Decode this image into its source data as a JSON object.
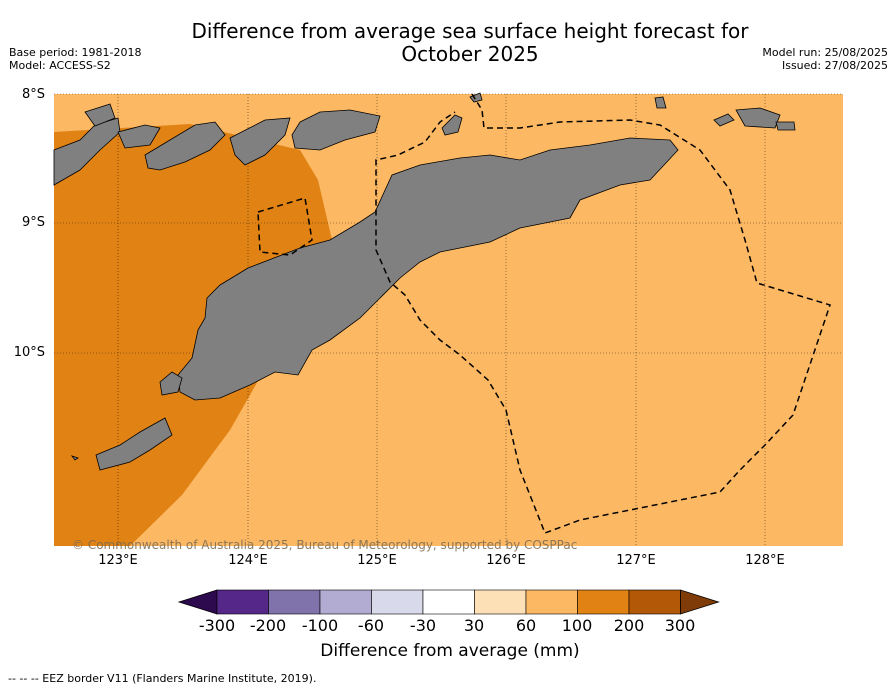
{
  "title_line1": "Difference from average sea surface height forecast for",
  "title_line2": "October 2025",
  "base_period": "Base period: 1981-2018",
  "model": "Model: ACCESS-S2",
  "model_run": "Model run: 25/08/2025",
  "issued": "Issued: 27/08/2025",
  "lat_labels": [
    "8°S",
    "9°S",
    "10°S"
  ],
  "lon_labels": [
    "123°E",
    "124°E",
    "125°E",
    "126°E",
    "127°E",
    "128°E"
  ],
  "copyright": "© Commonwealth of Australia 2025, Bureau of Meteorology, supported by COSPPac",
  "colorbar": {
    "ticks": [
      "-300",
      "-200",
      "-100",
      "-60",
      "-30",
      "30",
      "60",
      "100",
      "200",
      "300"
    ],
    "colors": [
      "#2d0a4e",
      "#542788",
      "#8073ac",
      "#b2abd2",
      "#d8daeb",
      "#ffffff",
      "#fee0b6",
      "#fdb863",
      "#e08214",
      "#b35806",
      "#7f3b08"
    ],
    "label": "Difference from average (mm)"
  },
  "footnote": "--  --  -- EEZ border V11 (Flanders Marine Institute, 2019).",
  "map_colors": {
    "anomaly_60_100": "#fdb863",
    "anomaly_100_200": "#e08214",
    "land": "#808080"
  }
}
